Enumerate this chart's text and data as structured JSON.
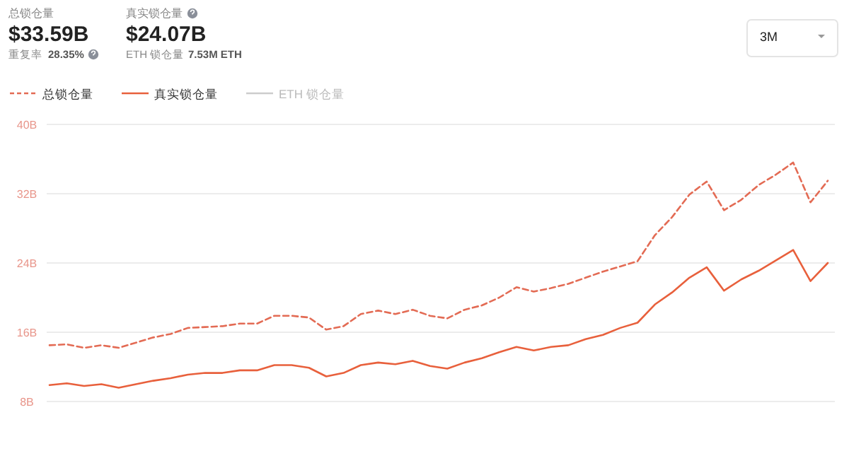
{
  "chart_data": {
    "type": "line",
    "categories": [
      null,
      null,
      null,
      null,
      null,
      null,
      null,
      null,
      null,
      null,
      null,
      null,
      null,
      null,
      null,
      null,
      null,
      null,
      null,
      null,
      null,
      null,
      null,
      null,
      null,
      null,
      null,
      null,
      null,
      null,
      null,
      null,
      null,
      null,
      null,
      null,
      null,
      null,
      null,
      null,
      null,
      null,
      null,
      null,
      null,
      null
    ],
    "series": [
      {
        "name": "总锁仓量",
        "color": "#e36b54",
        "line_style": "dashed",
        "values": [
          14.5,
          14.6,
          14.2,
          14.5,
          14.2,
          14.8,
          15.4,
          15.8,
          16.5,
          16.6,
          16.7,
          17.0,
          17.0,
          17.9,
          17.9,
          17.7,
          16.3,
          16.7,
          18.1,
          18.5,
          18.1,
          18.6,
          17.9,
          17.6,
          18.6,
          19.1,
          20.0,
          21.2,
          20.7,
          21.1,
          21.6,
          22.3,
          23.0,
          23.6,
          24.2,
          27.2,
          29.3,
          31.9,
          33.4,
          30.1,
          31.3,
          33.0,
          34.2,
          35.6,
          31.0,
          33.5
        ]
      },
      {
        "name": "真实锁仓量",
        "color": "#e8603c",
        "line_style": "solid",
        "values": [
          9.9,
          10.1,
          9.8,
          10.0,
          9.6,
          10.0,
          10.4,
          10.7,
          11.1,
          11.3,
          11.3,
          11.6,
          11.6,
          12.2,
          12.2,
          11.9,
          10.9,
          11.3,
          12.2,
          12.5,
          12.3,
          12.7,
          12.1,
          11.8,
          12.5,
          13.0,
          13.7,
          14.3,
          13.9,
          14.3,
          14.5,
          15.2,
          15.7,
          16.5,
          17.1,
          19.2,
          20.6,
          22.3,
          23.5,
          20.8,
          22.1,
          23.1,
          24.3,
          25.5,
          21.9,
          24.0
        ]
      },
      {
        "name": "ETH 锁仓量",
        "color": "#cccccc",
        "line_style": "solid",
        "values": [
          null,
          null,
          null,
          null,
          null,
          null,
          null,
          null,
          null,
          null,
          null,
          null,
          null,
          null,
          null,
          null,
          null,
          null,
          null,
          null,
          null,
          null,
          null,
          null,
          null,
          null,
          null,
          null,
          null,
          null,
          null,
          null,
          null,
          null,
          null,
          null,
          null,
          null,
          null,
          null,
          null,
          null,
          null,
          null,
          null,
          null
        ]
      }
    ],
    "ylim": [
      8,
      40
    ],
    "yticks": [
      {
        "value": 8,
        "label": "8B"
      },
      {
        "value": 16,
        "label": "16B"
      },
      {
        "value": 24,
        "label": "24B"
      },
      {
        "value": 32,
        "label": "32B"
      },
      {
        "value": 40,
        "label": "40B"
      }
    ],
    "tick_labels": "y",
    "grid": "y",
    "legend": "top left",
    "annotations": [
      "总锁仓量",
      "$33.59B",
      "重复率",
      "28.35%",
      "真实锁仓量",
      "$24.07B",
      "ETH 锁仓量",
      "7.53M ETH",
      "3M"
    ]
  }
}
